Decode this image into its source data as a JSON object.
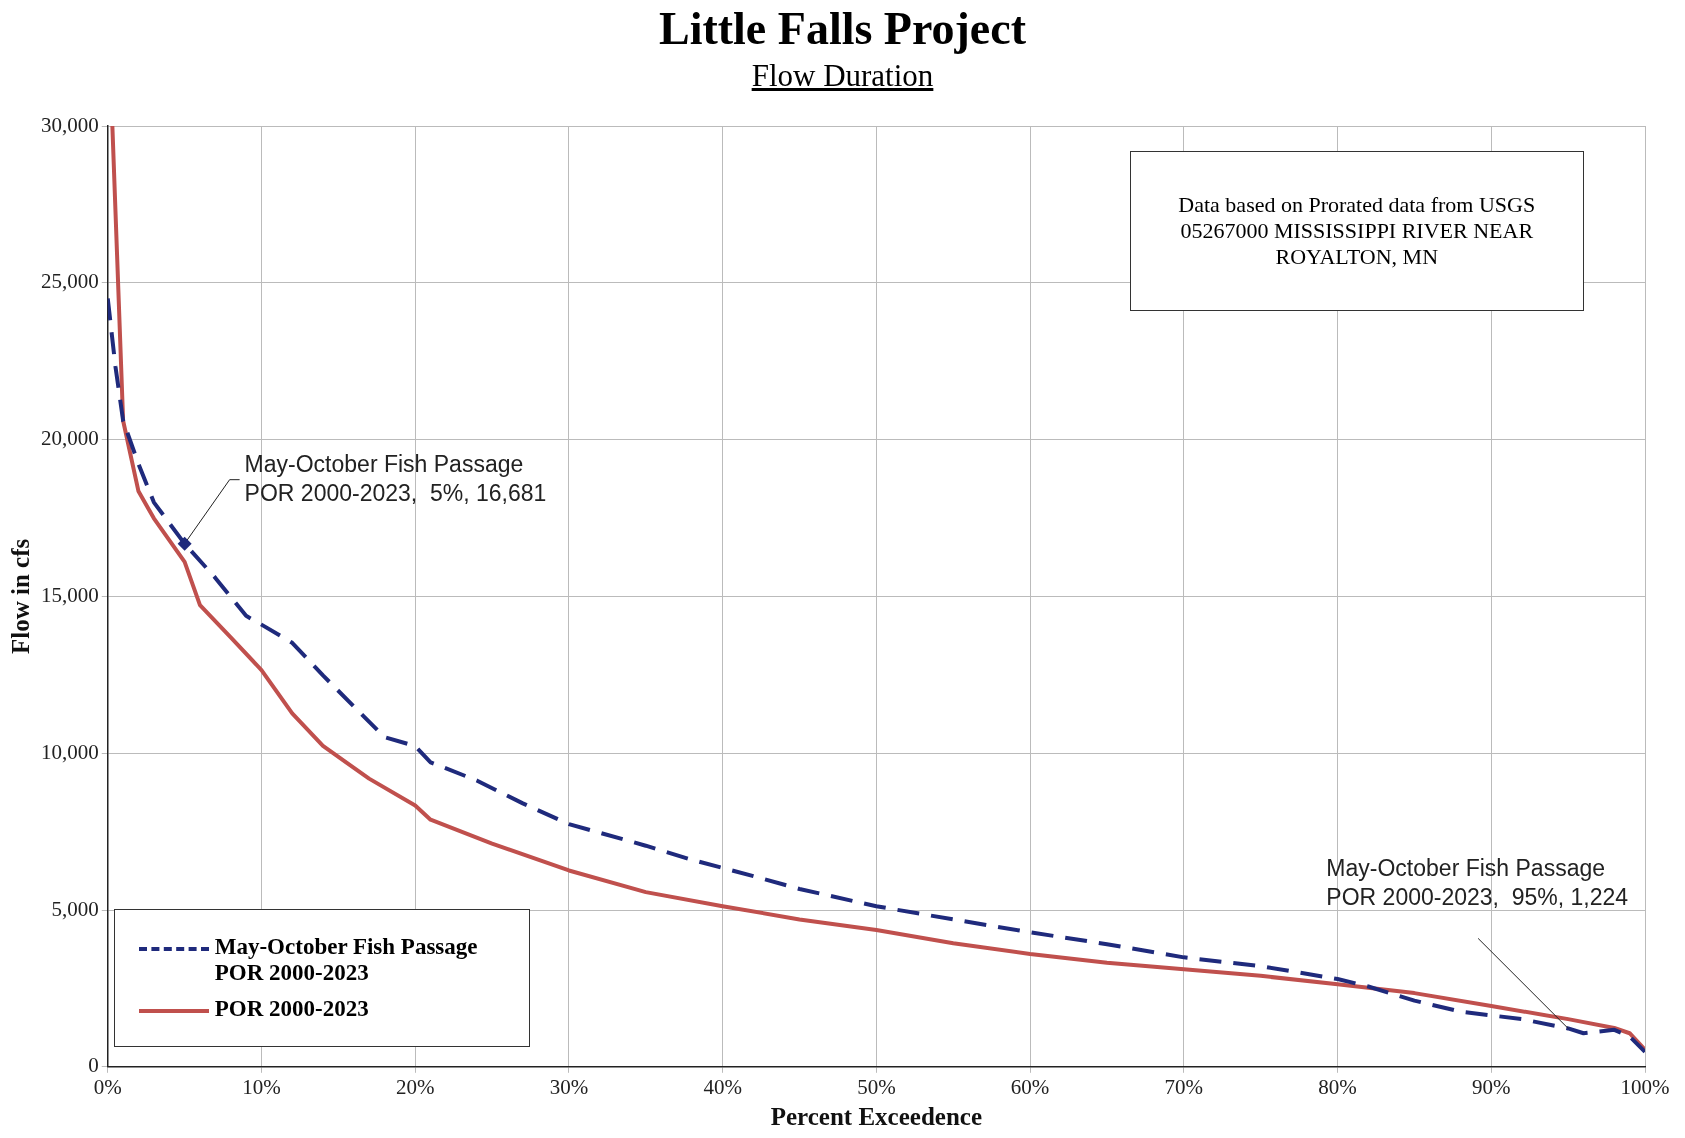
{
  "chart_data": {
    "type": "line",
    "title": "Little Falls Project",
    "subtitle": "Flow Duration",
    "xlabel": "Percent Exceedence",
    "ylabel": "Flow in cfs",
    "xlim": [
      0,
      100
    ],
    "xticks": [
      {
        "value": 0,
        "label": "0%"
      },
      {
        "value": 10,
        "label": "10%"
      },
      {
        "value": 20,
        "label": "20%"
      },
      {
        "value": 30,
        "label": "30%"
      },
      {
        "value": 40,
        "label": "40%"
      },
      {
        "value": 50,
        "label": "50%"
      },
      {
        "value": 60,
        "label": "60%"
      },
      {
        "value": 70,
        "label": "70%"
      },
      {
        "value": 80,
        "label": "80%"
      },
      {
        "value": 90,
        "label": "90%"
      },
      {
        "value": 100,
        "label": "100%"
      }
    ],
    "ylim": [
      0,
      30000
    ],
    "yticks": [
      0,
      {
        "value": 5000,
        "label": "5,000"
      },
      {
        "value": 10000,
        "label": "10,000"
      },
      {
        "value": 15000,
        "label": "15,000"
      },
      {
        "value": 20000,
        "label": "20,000"
      },
      {
        "value": 25000,
        "label": "25,000"
      },
      {
        "value": 30000,
        "label": "30,000"
      }
    ],
    "grid": true,
    "legend": "bottom left",
    "series": [
      {
        "name": "May-October Fish Passage POR 2000-2023",
        "color": "#1f2a7c",
        "line_style": "dashed",
        "x": [
          0,
          0.5,
          1,
          2,
          3,
          5,
          7,
          9,
          10,
          12,
          14,
          18,
          20,
          21,
          24,
          27,
          30,
          35,
          38,
          42,
          45,
          50,
          55,
          60,
          65,
          70,
          75,
          80,
          82,
          85,
          88,
          92,
          95,
          96,
          98,
          99,
          100
        ],
        "values": [
          24500,
          22330,
          20600,
          19220,
          18000,
          16681,
          15590,
          14380,
          14100,
          13520,
          12480,
          10510,
          10230,
          9710,
          9130,
          8400,
          7740,
          7050,
          6600,
          6080,
          5670,
          5120,
          4700,
          4290,
          3910,
          3490,
          3210,
          2800,
          2560,
          2110,
          1760,
          1520,
          1224,
          1070,
          1180,
          970,
          480
        ]
      },
      {
        "name": "POR 2000-2023",
        "color": "#c0504d",
        "line_style": "solid",
        "x": [
          0.3,
          1,
          2,
          3,
          5,
          6,
          8,
          10,
          12,
          14,
          17,
          20,
          21,
          25,
          30,
          35,
          40,
          45,
          50,
          55,
          60,
          65,
          70,
          75,
          80,
          85,
          90,
          95,
          98,
          99,
          100
        ],
        "values": [
          30000,
          20600,
          18350,
          17490,
          16100,
          14720,
          13690,
          12650,
          11270,
          10230,
          9190,
          8330,
          7880,
          7120,
          6260,
          5570,
          5120,
          4700,
          4360,
          3940,
          3600,
          3320,
          3110,
          2900,
          2630,
          2350,
          1940,
          1520,
          1240,
          1070,
          550
        ]
      }
    ],
    "annotations": [
      "Data based on Prorated data from USGS 05267000  MISSISSIPPI RIVER NEAR ROYALTON, MN",
      {
        "text": "May-October Fish Passage\nPOR 2000-2023,  5%, 16,681",
        "x": 5,
        "y": 16681
      },
      {
        "text": "May-October Fish Passage\nPOR 2000-2023,  95%, 1,224",
        "x": 95,
        "y": 1224
      }
    ]
  }
}
